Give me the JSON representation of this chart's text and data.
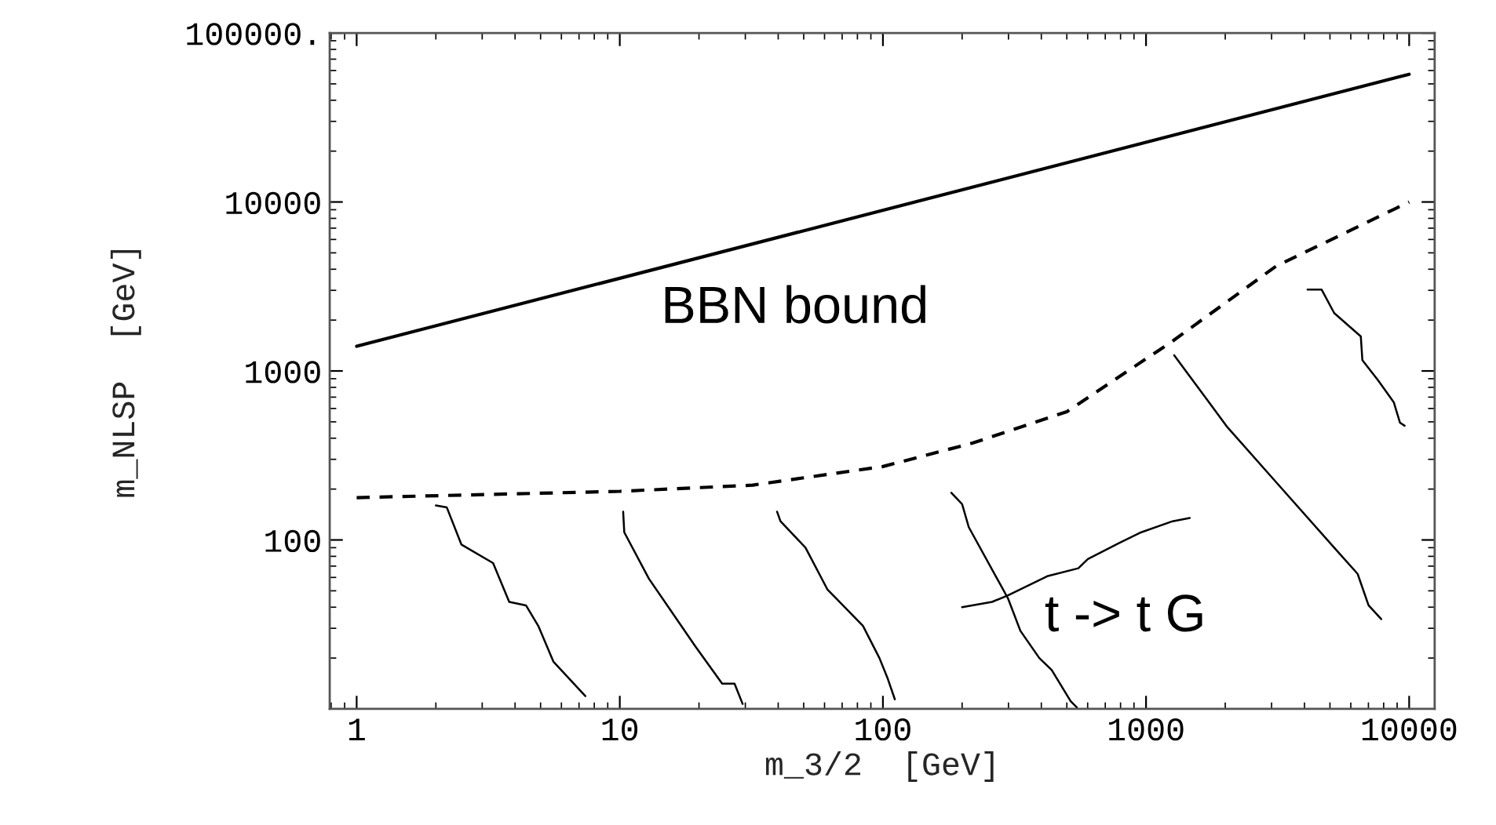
{
  "chart_data": {
    "type": "line",
    "xlabel": "m_3/2  [GeV]",
    "ylabel": "m_NLSP  [GeV]",
    "log": "xy",
    "xlim": [
      0.79,
      12500
    ],
    "ylim": [
      10,
      100000
    ],
    "xticks": [
      1,
      10,
      100,
      1000,
      10000
    ],
    "yticks": [
      100,
      1000,
      10000,
      {
        "value": 100000,
        "label": "100000."
      }
    ],
    "grid": false,
    "legend": false,
    "series": [
      {
        "color": "#000000",
        "line_style": "solid",
        "x": [
          1,
          10000
        ],
        "values": [
          1400,
          57000
        ]
      },
      {
        "color": "#000000",
        "line_style": "dashed",
        "x": [
          1,
          10,
          32,
          100,
          220,
          500,
          1260,
          3120,
          10000
        ],
        "values": [
          178,
          194,
          211,
          272,
          375,
          574,
          1500,
          4170,
          10000
        ]
      },
      {
        "color": "#000000",
        "line_style": "solid",
        "x": [
          2.0,
          2.2,
          2.5,
          3.3,
          3.8,
          4.4,
          4.9,
          5.6,
          7.4
        ],
        "values": [
          160,
          156,
          94,
          73,
          43,
          41,
          31,
          19,
          11.9
        ]
      },
      {
        "color": "#000000",
        "line_style": "solid",
        "x": [
          10.3,
          10.4,
          12.9,
          19.4,
          24.5,
          27.3,
          29.3
        ],
        "values": [
          147,
          111,
          59,
          23.4,
          14.1,
          14.1,
          10.7
        ]
      },
      {
        "color": "#000000",
        "line_style": "solid",
        "x": [
          39.6,
          40.8,
          50.8,
          61.5,
          84,
          97,
          104,
          111
        ],
        "values": [
          147,
          129,
          90,
          51,
          31,
          20,
          15.3,
          11.4
        ]
      },
      {
        "color": "#000000",
        "line_style": "solid",
        "x": [
          182,
          200,
          212,
          299,
          333,
          393,
          438,
          517,
          546
        ],
        "values": [
          190,
          163,
          119,
          45,
          29,
          20,
          17,
          11.1,
          10.2
        ]
      },
      {
        "color": "#000000",
        "line_style": "solid",
        "x": [
          200,
          260,
          299,
          421,
          553,
          601,
          791,
          959,
          1262,
          1466
        ],
        "values": [
          40,
          43,
          47,
          61,
          68,
          77,
          96,
          111,
          129,
          135
        ]
      },
      {
        "color": "#000000",
        "line_style": "solid",
        "x": [
          1279,
          2040,
          3120,
          5190,
          6370,
          7010,
          7830
        ],
        "values": [
          1240,
          464,
          220,
          90,
          63,
          41,
          34
        ]
      },
      {
        "color": "#000000",
        "line_style": "solid",
        "x": [
          4110,
          4650,
          5190,
          6550,
          6640,
          7620,
          8740,
          9230,
          9610
        ],
        "values": [
          3030,
          3030,
          2200,
          1600,
          1160,
          880,
          653,
          494,
          474
        ]
      }
    ],
    "annotations": [
      "BBN bound",
      "t -> t G"
    ]
  }
}
